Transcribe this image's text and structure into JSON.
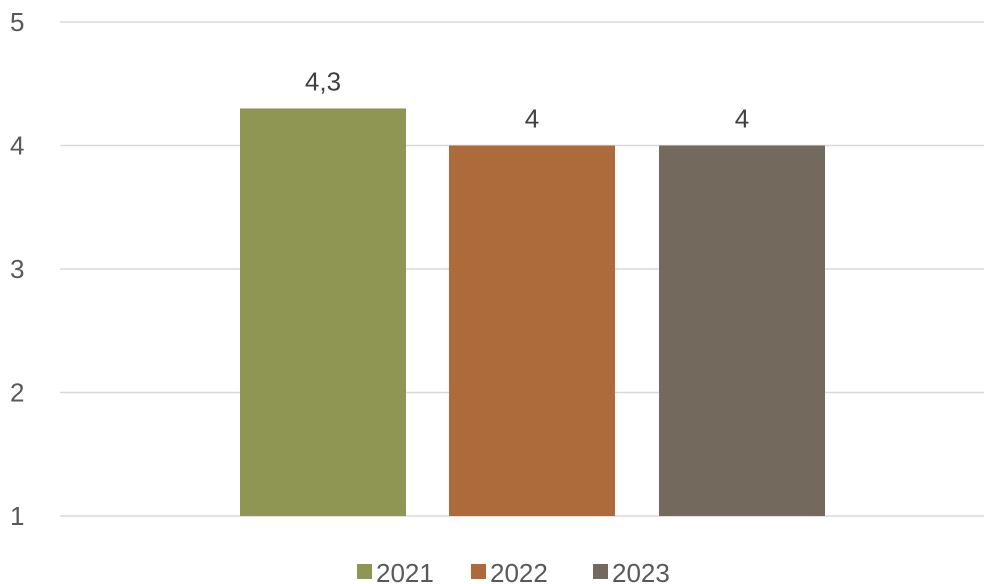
{
  "chart_data": {
    "type": "bar",
    "title": "",
    "xlabel": "",
    "ylabel": "",
    "ylim": [
      1,
      5
    ],
    "yticks": [
      "1",
      "2",
      "3",
      "4",
      "5"
    ],
    "grid": true,
    "legend_position": "bottom",
    "categories": [
      ""
    ],
    "series": [
      {
        "name": "2021",
        "values": [
          4.3
        ],
        "data_label": "4,3",
        "color": "#8f9552"
      },
      {
        "name": "2022",
        "values": [
          4.0
        ],
        "data_label": "4",
        "color": "#ad6a3a"
      },
      {
        "name": "2023",
        "values": [
          4.0
        ],
        "data_label": "4",
        "color": "#73695c"
      }
    ]
  }
}
